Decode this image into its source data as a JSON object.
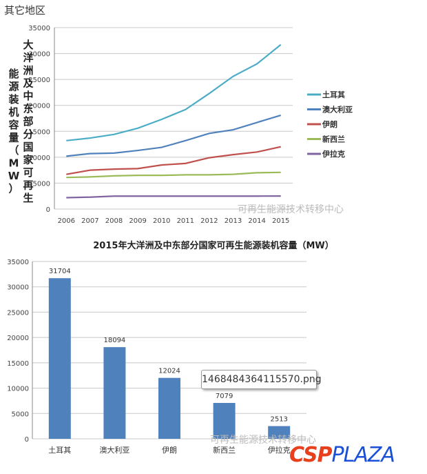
{
  "header": "其它地区",
  "chart_data": [
    {
      "type": "line",
      "ylabel": "大洋洲及中东部分国家可再生能源装机容量（MW）",
      "ylim": [
        0,
        35000
      ],
      "yticks": [
        0,
        5000,
        10000,
        15000,
        20000,
        25000,
        30000,
        35000
      ],
      "grid": true,
      "legend": "right",
      "x": [
        "2006",
        "2007",
        "2008",
        "2009",
        "2010",
        "2011",
        "2012",
        "2013",
        "2014",
        "2015"
      ],
      "series": [
        {
          "name": "土耳其",
          "color": "#4bacc6",
          "values": [
            13200,
            13700,
            14400,
            15600,
            17300,
            19200,
            22300,
            25600,
            28000,
            31704
          ]
        },
        {
          "name": "澳大利亚",
          "color": "#4f81bd",
          "values": [
            10200,
            10700,
            10800,
            11300,
            11900,
            13200,
            14600,
            15300,
            16700,
            18094
          ]
        },
        {
          "name": "伊朗",
          "color": "#c0504d",
          "values": [
            6700,
            7500,
            7700,
            7800,
            8500,
            8800,
            9900,
            10500,
            11000,
            12024
          ]
        },
        {
          "name": "新西兰",
          "color": "#9bbb59",
          "values": [
            6100,
            6200,
            6400,
            6500,
            6500,
            6600,
            6600,
            6700,
            7000,
            7079
          ]
        },
        {
          "name": "伊拉克",
          "color": "#8064a2",
          "values": [
            2200,
            2300,
            2500,
            2500,
            2500,
            2500,
            2500,
            2500,
            2500,
            2513
          ]
        }
      ]
    },
    {
      "type": "bar",
      "title": "2015年大洋洲及中东部分国家可再生能源装机容量（MW）",
      "ylim": [
        0,
        35000
      ],
      "yticks": [
        0,
        5000,
        10000,
        15000,
        20000,
        25000,
        30000,
        35000
      ],
      "grid": true,
      "color": "#4f81bd",
      "categories": [
        "土耳其",
        "澳大利亚",
        "伊朗",
        "新西兰",
        "伊拉克"
      ],
      "values": [
        31704,
        18094,
        12024,
        7079,
        2513
      ]
    }
  ],
  "watermark": "可再生能源技术转移中心",
  "tooltip": "1468484364115570.png",
  "logo": {
    "left": "CSP",
    "right": "PLAZA"
  }
}
